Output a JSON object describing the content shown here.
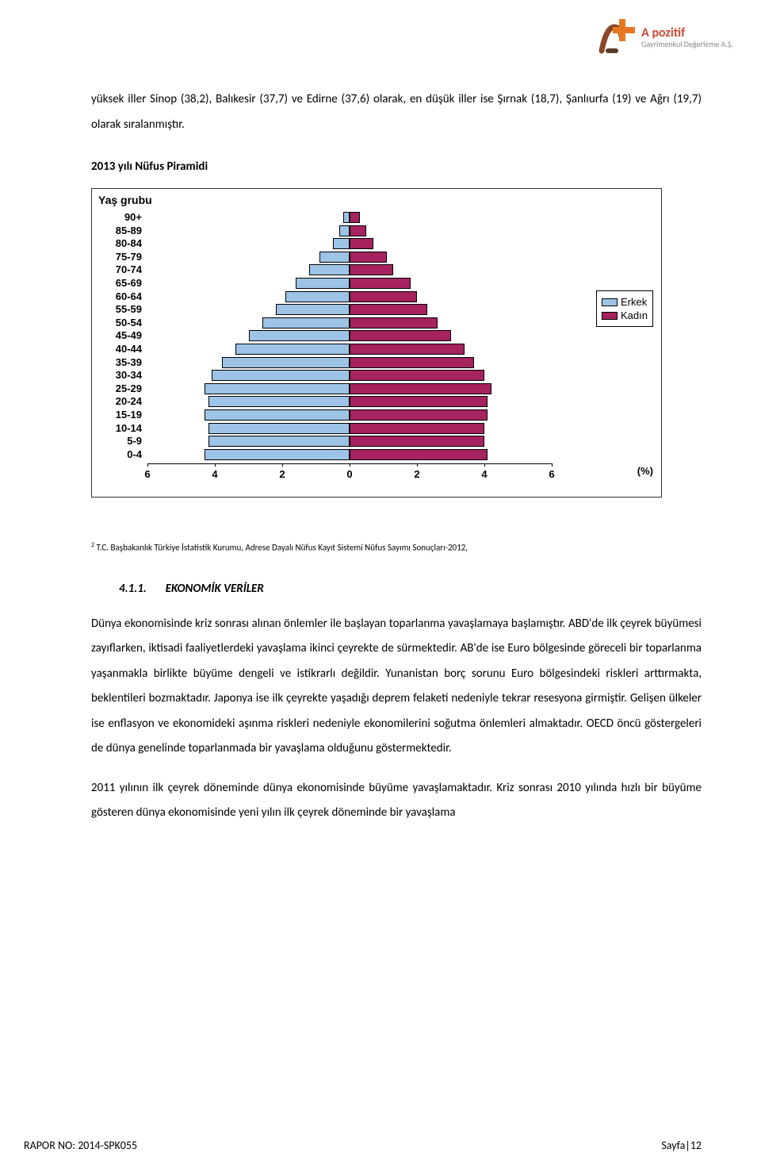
{
  "brand": {
    "name": "A pozitif",
    "subtitle": "Gayrimenkul Değerleme A.Ş.",
    "logo_colors": {
      "c_brown": "#8a4a2a",
      "c_orange": "#e87722",
      "c_dark": "#5a3a2a"
    }
  },
  "para1": "yüksek iller Sinop (38,2), Balıkesir (37,7) ve Edirne (37,6) olarak, en düşük iller ise Şırnak (18,7), Şanlıurfa (19) ve Ağrı (19,7) olarak sıralanmıştır.",
  "section_title": "2013 yılı Nüfus Piramidi",
  "chart": {
    "ylabel": "Yaş grubu",
    "xlabel_right": "(%)",
    "age_groups": [
      "90+",
      "85-89",
      "80-84",
      "75-79",
      "70-74",
      "65-69",
      "60-64",
      "55-59",
      "50-54",
      "45-49",
      "40-44",
      "35-39",
      "30-34",
      "25-29",
      "20-24",
      "15-19",
      "10-14",
      "5-9",
      "0-4"
    ],
    "male": [
      0.2,
      0.3,
      0.5,
      0.9,
      1.2,
      1.6,
      1.9,
      2.2,
      2.6,
      3.0,
      3.4,
      3.8,
      4.1,
      4.3,
      4.2,
      4.3,
      4.2,
      4.2,
      4.3
    ],
    "female": [
      0.3,
      0.5,
      0.7,
      1.1,
      1.3,
      1.8,
      2.0,
      2.3,
      2.6,
      3.0,
      3.4,
      3.7,
      4.0,
      4.2,
      4.1,
      4.1,
      4.0,
      4.0,
      4.1
    ],
    "male_color": "#9dc3e6",
    "female_color": "#a6235f",
    "xticks": [
      6,
      4,
      2,
      0,
      2,
      4,
      6
    ],
    "xlim": 6,
    "legend_male": "Erkek",
    "legend_female": "Kadın"
  },
  "footnote_marker": "2",
  "footnote": " T.C. Başbakanlık Türkiye İstatistik Kurumu, Adrese Dayalı Nüfus Kayıt Sistemi Nüfus Sayımı Sonuçları-2012,",
  "subsection": {
    "num": "4.1.1.",
    "title": "EKONOMİK VERİLER"
  },
  "body_p1": "Dünya ekonomisinde kriz sonrası alınan önlemler ile başlayan toparlanma yavaşlamaya başlamıştır. ABD'de ilk çeyrek büyümesi zayıflarken, iktisadi faaliyetlerdeki yavaşlama ikinci çeyrekte de sürmektedir. AB'de ise Euro bölgesinde göreceli bir toparlanma yaşanmakla birlikte büyüme dengeli ve istikrarlı değildir. Yunanistan borç sorunu Euro bölgesindeki riskleri arttırmakta, beklentileri bozmaktadır. Japonya ise ilk çeyrekte yaşadığı deprem felaketi nedeniyle tekrar resesyona girmiştir. Gelişen ülkeler ise enflasyon ve ekonomideki aşınma riskleri nedeniyle ekonomilerini soğutma önlemleri almaktadır. OECD öncü göstergeleri de dünya genelinde toparlanmada bir yavaşlama olduğunu göstermektedir.",
  "body_p2": "2011 yılının ilk çeyrek döneminde dünya ekonomisinde büyüme yavaşlamaktadır. Kriz sonrası 2010 yılında hızlı bir büyüme gösteren dünya ekonomisinde yeni yılın ilk çeyrek döneminde bir yavaşlama",
  "footer_left": "RAPOR NO: 2014-SPK055",
  "footer_right": "Sayfa|12"
}
